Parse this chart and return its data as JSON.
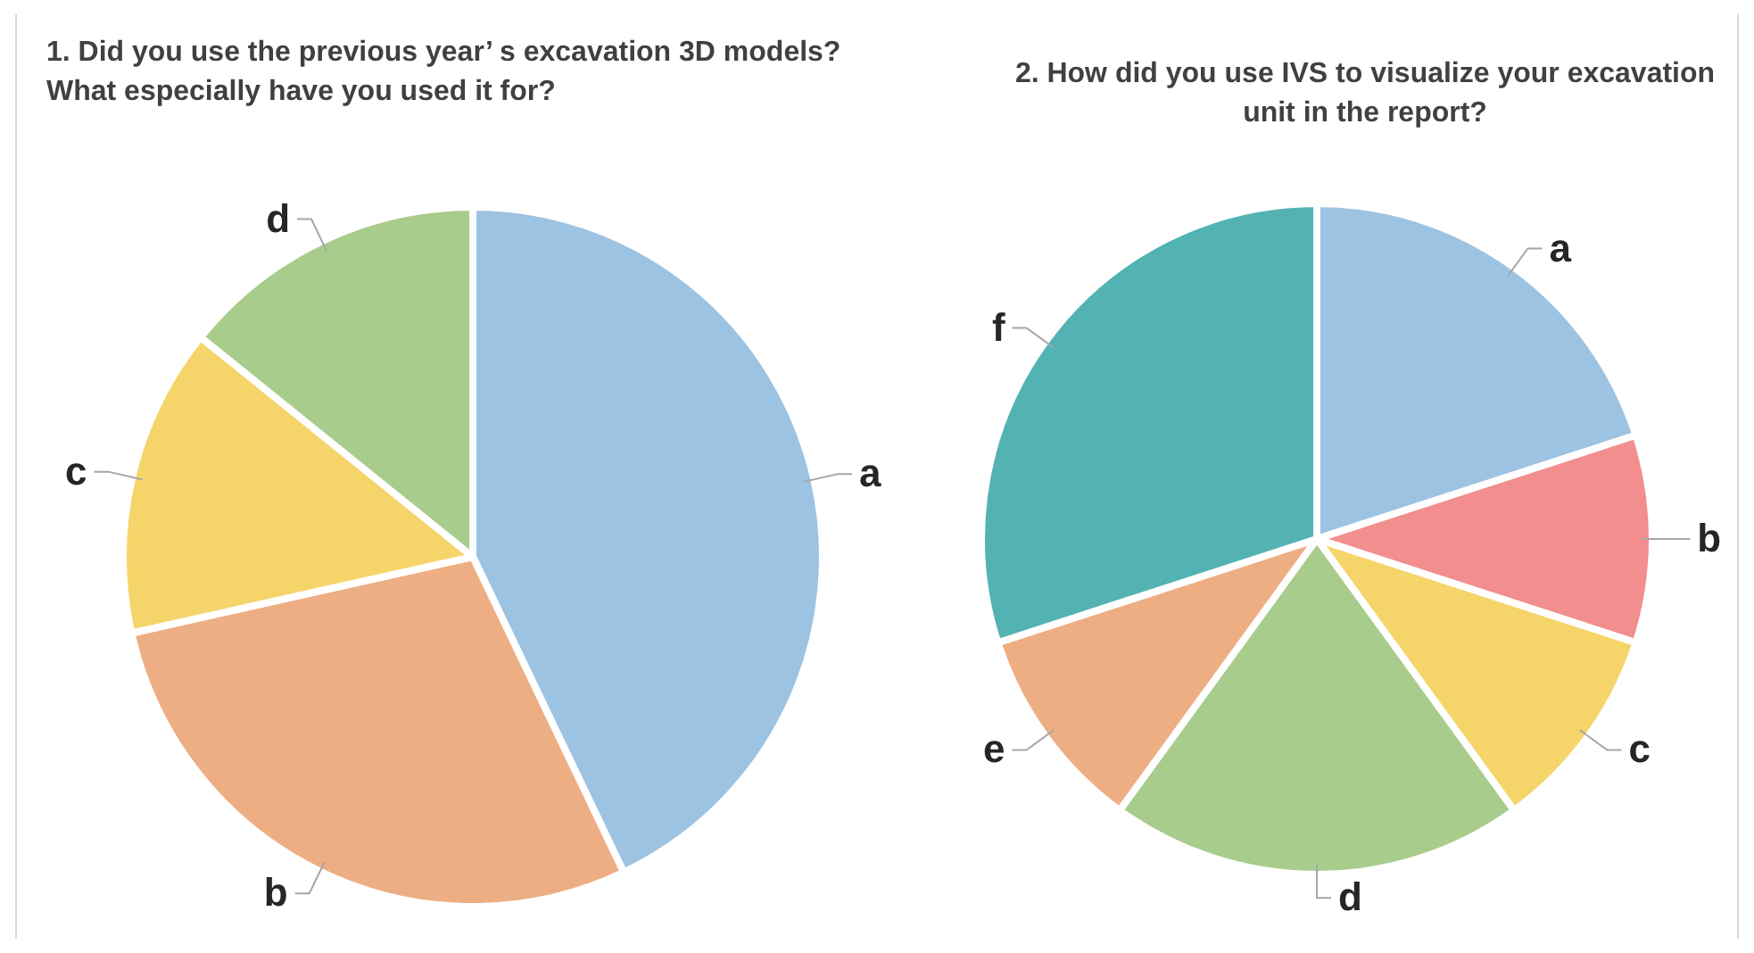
{
  "chart_data": [
    {
      "type": "pie",
      "title": "1. Did you use the previous year’ s excavation 3D models?  What especially have you used it for?",
      "categories": [
        "a",
        "b",
        "c",
        "d"
      ],
      "values": [
        42.9,
        28.6,
        14.3,
        14.2
      ],
      "colors": [
        "#9dc3e3",
        "#eeae84",
        "#f5d46a",
        "#a8cc8c"
      ]
    },
    {
      "type": "pie",
      "title": "2. How did you use IVS to visualize your excavation unit in the report?",
      "categories": [
        "a",
        "b",
        "c",
        "d",
        "e",
        "f"
      ],
      "values": [
        20,
        10,
        10,
        20,
        10,
        30
      ],
      "colors": [
        "#9dc3e3",
        "#f28e8e",
        "#f5d46a",
        "#a8cc8c",
        "#eeae84",
        "#53b3b3"
      ]
    }
  ]
}
